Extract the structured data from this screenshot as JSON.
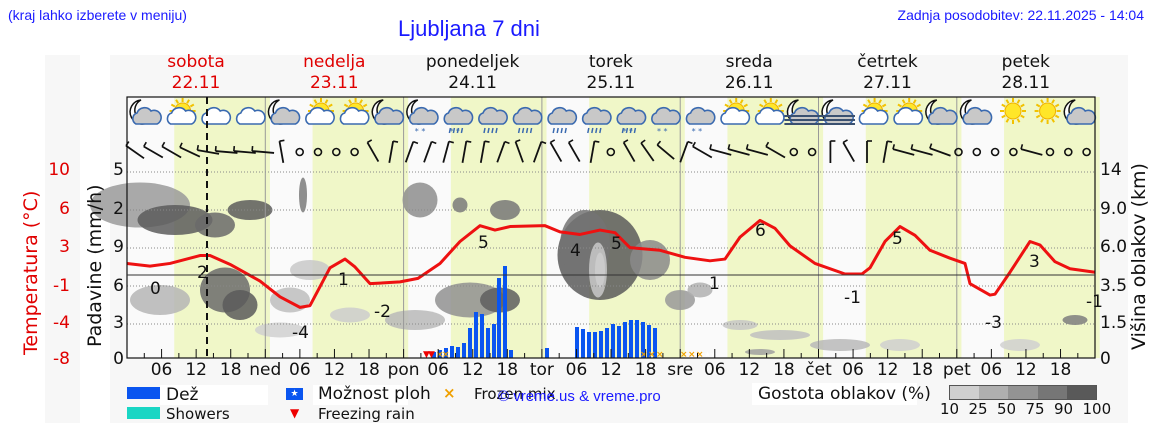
{
  "header": {
    "menu_hint": "(kraj lahko izberete v meniju)",
    "title": "Ljubljana 7 dni",
    "last_update": "Zadnja posodobitev: 22.11.2025 - 14:04"
  },
  "days": [
    {
      "name": "sobota",
      "date": "22.11",
      "weekend": true
    },
    {
      "name": "nedelja",
      "date": "23.11",
      "weekend": true
    },
    {
      "name": "ponedeljek",
      "date": "24.11",
      "weekend": false
    },
    {
      "name": "torek",
      "date": "25.11",
      "weekend": false
    },
    {
      "name": "sreda",
      "date": "26.11",
      "weekend": false
    },
    {
      "name": "četrtek",
      "date": "27.11",
      "weekend": false
    },
    {
      "name": "petek",
      "date": "28.11",
      "weekend": false
    }
  ],
  "axes": {
    "temp_label": "Temperatura (°C)",
    "precip_label": "Padavine (mm/h)",
    "cloud_height_label": "Višina oblakov (km)",
    "temp_ticks": [
      "10",
      "6",
      "3",
      "-1",
      "-4",
      "-8"
    ],
    "precip_ticks": [
      "5",
      "2",
      "9",
      "6",
      "3",
      "0"
    ],
    "cloud_height_ticks": [
      "14",
      "9.0",
      "6.0",
      "3.5",
      "1.5",
      "0"
    ],
    "x_ticks": [
      "06",
      "12",
      "18",
      "ned",
      "06",
      "12",
      "18",
      "pon",
      "06",
      "12",
      "18",
      "tor",
      "06",
      "12",
      "18",
      "sre",
      "06",
      "12",
      "18",
      "čet",
      "06",
      "12",
      "18",
      "pet",
      "06",
      "12",
      "18"
    ]
  },
  "legend": {
    "rain": "Dež",
    "showers": "Showers",
    "possible_showers": "Možnost ploh",
    "freezing_rain": "Freezing rain",
    "frozen_mix": "Frozen mix",
    "cloud_density": "Gostota oblakov (%)",
    "cloud_scale": [
      "10",
      "25",
      "50",
      "75",
      "90",
      "100"
    ],
    "colors": {
      "rain": "#0a55f0",
      "showers": "#19d6c4",
      "freezing": "#ff0000",
      "frozen_mix": "#f0a000",
      "temp_line": "#ee1111"
    }
  },
  "copyright": "© vreme.us & vreme.pro",
  "weather_icons": [
    "moon-cloud",
    "sun-cloud",
    "cloud",
    "cloud",
    "moon-cloud",
    "sun-cloud",
    "sun-cloud",
    "moon-cloud",
    "moon-snow",
    "rain-snow",
    "rain",
    "rain",
    "rain",
    "rain",
    "rain-snow",
    "snow",
    "snow",
    "sun-cloud",
    "sun-cloud",
    "fog-moon",
    "fog-moon",
    "sun-cloud",
    "sun-cloud",
    "moon-cloud",
    "moon-cloud",
    "sun",
    "sun",
    "moon-cloud"
  ],
  "chart_data": {
    "type": "line",
    "title": "Ljubljana 7 dni",
    "xlabel": "",
    "ylabel": "Temperatura (°C)",
    "ylim": [
      -8,
      10
    ],
    "grid": true,
    "series": [
      {
        "name": "Temperatura (°C)",
        "x": [
          "22.11 00",
          "22.11 06",
          "22.11 12",
          "22.11 18",
          "23.11 06",
          "23.11 12",
          "23.11 18",
          "24.11 06",
          "24.11 12",
          "24.11 18",
          "25.11 06",
          "25.11 12",
          "25.11 18",
          "26.11 06",
          "26.11 12",
          "26.11 18",
          "27.11 06",
          "27.11 12",
          "27.11 18",
          "28.11 06",
          "28.11 12",
          "28.11 18"
        ],
        "values": [
          1,
          0,
          2,
          -1,
          -4,
          1,
          -2,
          -1,
          5,
          5,
          4,
          5,
          2,
          1,
          6,
          1,
          -1,
          5,
          1,
          -3,
          3,
          -1
        ]
      },
      {
        "name": "Dež (mm/h)",
        "x": [
          "24.11 06",
          "24.11 09",
          "24.11 12",
          "24.11 15",
          "24.11 18",
          "24.11 21",
          "25.11 03",
          "25.11 06",
          "25.11 09",
          "25.11 12",
          "25.11 15",
          "25.11 18"
        ],
        "values": [
          0.3,
          0.4,
          0.8,
          2.5,
          3.3,
          0.5,
          0.3,
          1.2,
          1.1,
          1.3,
          1.4,
          1.2
        ]
      }
    ],
    "annotations": {
      "temp_labels": [
        "0",
        "2",
        "-4",
        "1",
        "-2",
        "5",
        "4",
        "5",
        "1",
        "6",
        "-1",
        "5",
        "-3",
        "3",
        "-1"
      ],
      "now_marker": "22.11 14:04"
    }
  }
}
